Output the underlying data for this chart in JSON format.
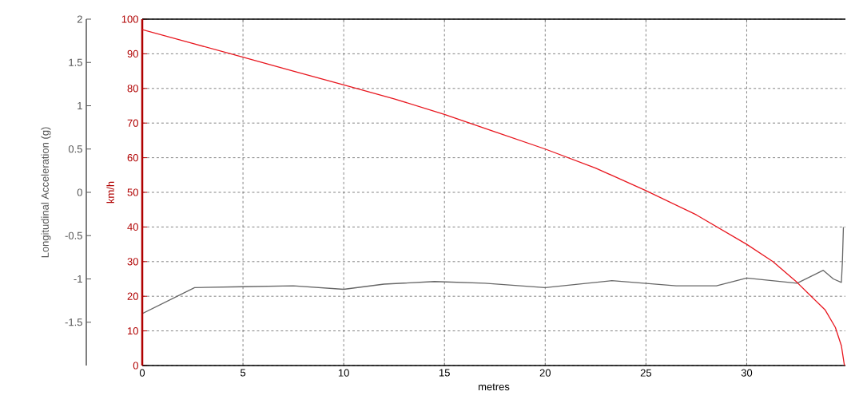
{
  "chart_data": {
    "type": "line",
    "xlabel": "metres",
    "ylabel": "km/h",
    "y2label": "Longitudinal Acceleration (g)",
    "xlim": [
      0,
      34.9
    ],
    "xticks": [
      0,
      5,
      10,
      15,
      20,
      25,
      30
    ],
    "ylim": [
      0,
      100
    ],
    "yticks": [
      0,
      10,
      20,
      30,
      40,
      50,
      60,
      70,
      80,
      90,
      100
    ],
    "y2lim": [
      -2,
      2
    ],
    "y2ticks": [
      -1.5,
      -1,
      -0.5,
      0,
      0.5,
      1,
      1.5,
      2
    ],
    "grid": true,
    "series": [
      {
        "color": "#e8161e",
        "x": [
          0,
          2.5,
          5,
          7.5,
          10,
          12.5,
          15,
          17.5,
          20,
          22.5,
          25,
          27.5,
          30,
          31.3,
          32.5,
          33.2,
          33.9,
          34.4,
          34.7,
          34.85
        ],
        "values": [
          97,
          93,
          89,
          85,
          81,
          77,
          72.5,
          67.5,
          62.5,
          57,
          50.5,
          43.5,
          35,
          30,
          24,
          20,
          16,
          11,
          5.7,
          0
        ]
      },
      {
        "color": "#666666",
        "axis": "y2",
        "x": [
          0,
          2.6,
          5,
          7.5,
          10,
          12,
          14.5,
          17,
          20,
          23.3,
          26.5,
          28.5,
          30,
          32.5,
          33.8,
          34.3,
          34.7,
          34.75,
          34.8
        ],
        "values": [
          -1.4,
          -1.1,
          -1.09,
          -1.08,
          -1.12,
          -1.06,
          -1.03,
          -1.05,
          -1.1,
          -1.02,
          -1.08,
          -1.08,
          -0.99,
          -1.05,
          -0.9,
          -1,
          -1.04,
          -0.8,
          -0.4
        ]
      }
    ]
  }
}
